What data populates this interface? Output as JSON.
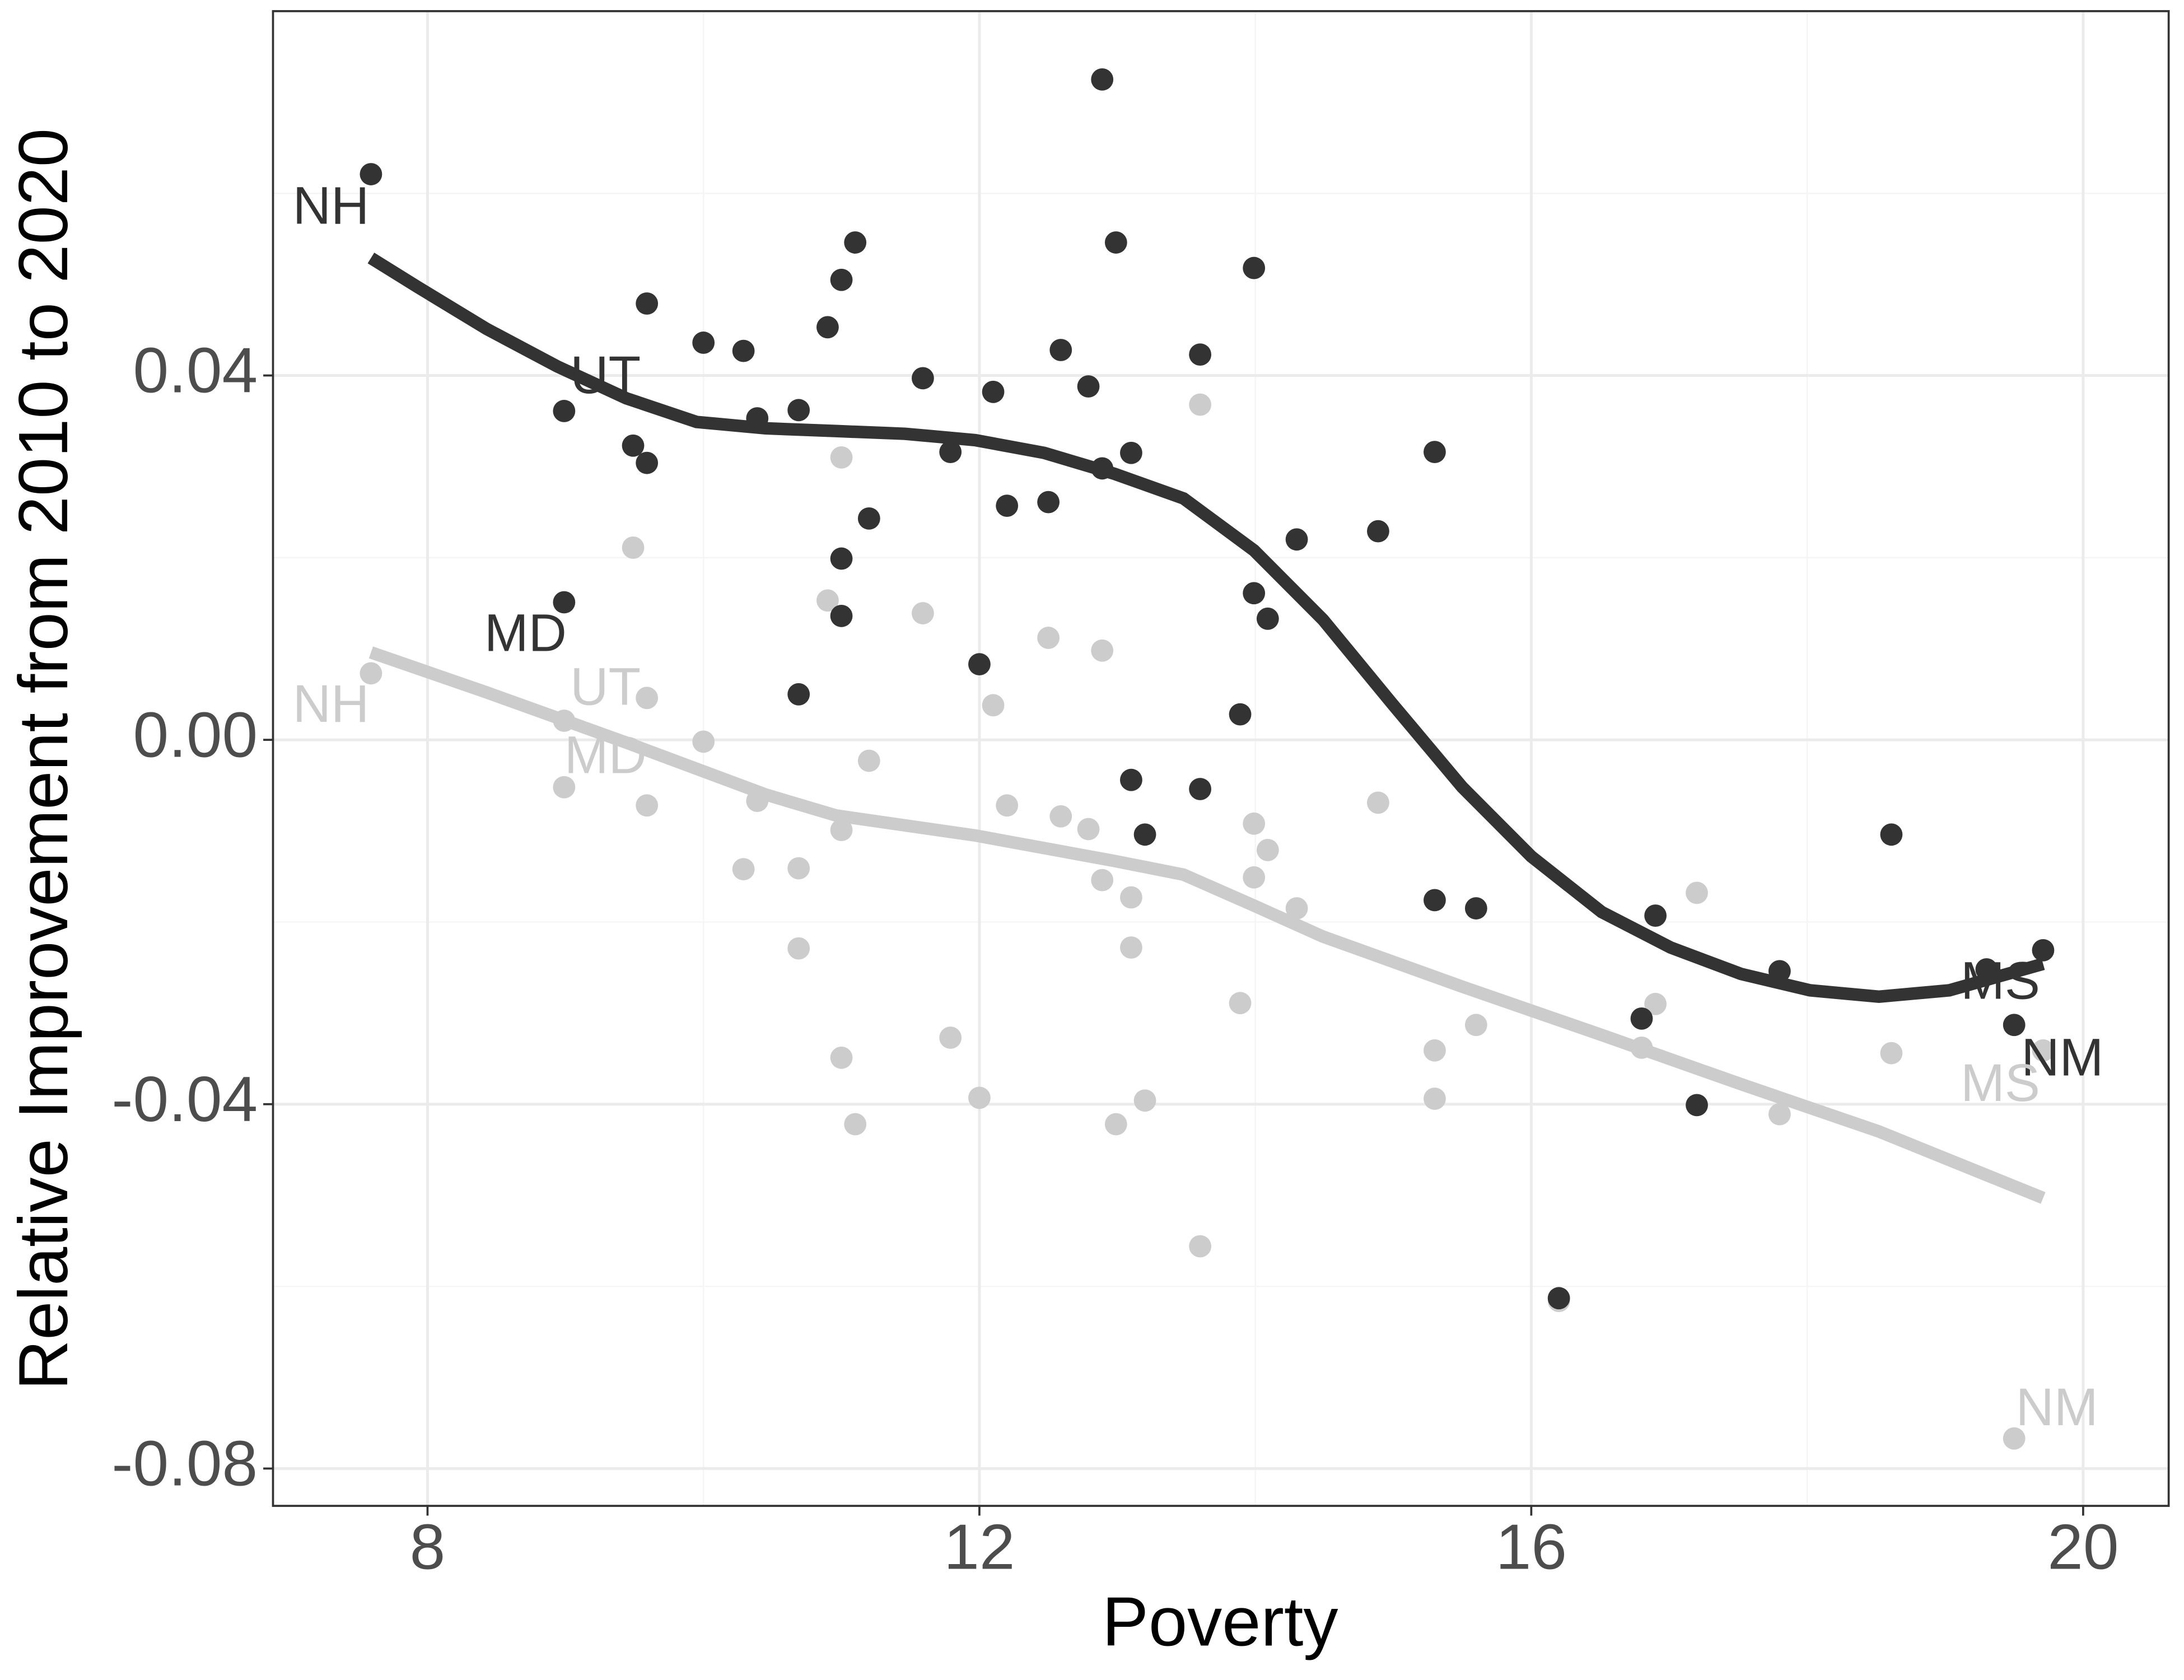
{
  "chart_data": {
    "type": "scatter",
    "xlabel": "Poverty",
    "ylabel": "Relative Improvement from 2010 to 2020",
    "xlim": [
      6.88,
      20.62
    ],
    "ylim": [
      -0.0841,
      0.08
    ],
    "xticks": [
      8,
      12,
      16,
      20
    ],
    "yticks": [
      0.04,
      {
        "value": 0,
        "label": "0.00"
      },
      -0.04,
      -0.08
    ],
    "x_minor_ticks": [
      10,
      14,
      18
    ],
    "y_minor_ticks": [
      0.06,
      0.02,
      -0.02,
      -0.06
    ],
    "grid": true,
    "series": [
      {
        "color": "#333333",
        "x": [
          7.59,
          8.99,
          8.99,
          9.49,
          9.59,
          9.59,
          10.0,
          10.29,
          10.39,
          10.69,
          10.69,
          10.9,
          11.0,
          11.1,
          11.0,
          11.0,
          11.2,
          11.59,
          11.79,
          12.0,
          12.1,
          12.2,
          12.5,
          12.59,
          12.79,
          12.89,
          12.89,
          12.99,
          13.1,
          13.1,
          13.2,
          13.6,
          13.6,
          13.89,
          13.99,
          13.99,
          14.09,
          14.3,
          14.89,
          15.3,
          15.3,
          15.6,
          16.2,
          16.8,
          16.9,
          17.2,
          17.8,
          18.61,
          19.3,
          19.5,
          19.71
        ],
        "values": [
          0.0621,
          0.0361,
          0.0151,
          0.0323,
          0.0479,
          0.0304,
          0.0436,
          0.0427,
          0.0353,
          0.0362,
          0.005,
          0.0453,
          0.0505,
          0.0546,
          0.0199,
          0.0136,
          0.0243,
          0.0397,
          0.0316,
          0.0083,
          0.0382,
          0.0257,
          0.0261,
          0.0428,
          0.0388,
          0.0725,
          0.0298,
          0.0546,
          0.0315,
          -0.0044,
          -0.0104,
          0.0423,
          -0.0054,
          0.0028,
          0.0518,
          0.0161,
          0.0133,
          0.022,
          0.0229,
          0.0316,
          -0.0176,
          -0.0185,
          -0.0613,
          -0.0306,
          -0.0193,
          -0.0401,
          -0.0254,
          -0.0104,
          -0.0252,
          -0.0313,
          -0.0231
        ],
        "smooth": {
          "x": [
            7.59,
            7.93,
            8.43,
            8.94,
            9.44,
            9.95,
            10.45,
            10.96,
            11.46,
            11.97,
            12.47,
            12.98,
            13.48,
            13.99,
            14.49,
            14.99,
            15.5,
            16.0,
            16.51,
            17.01,
            17.52,
            18.02,
            18.52,
            19.03,
            19.71
          ],
          "values": [
            0.0529,
            0.0497,
            0.0451,
            0.041,
            0.0375,
            0.0349,
            0.0342,
            0.0339,
            0.0336,
            0.0329,
            0.0315,
            0.0292,
            0.0265,
            0.0208,
            0.0132,
            0.004,
            -0.0052,
            -0.0128,
            -0.0189,
            -0.0228,
            -0.0257,
            -0.0275,
            -0.0282,
            -0.0275,
            -0.0246
          ]
        },
        "labels": [
          {
            "text": "NH",
            "x": 7.3,
            "y": 0.0582
          },
          {
            "text": "UT",
            "x": 9.29,
            "y": 0.0396
          },
          {
            "text": "MD",
            "x": 8.71,
            "y": 0.0113
          },
          {
            "text": "MS",
            "x": 19.4,
            "y": -0.0269
          },
          {
            "text": "NM",
            "x": 19.85,
            "y": -0.0353
          }
        ]
      },
      {
        "color": "#cccccc",
        "x": [
          7.59,
          8.99,
          8.99,
          9.49,
          9.59,
          9.59,
          10.0,
          10.29,
          10.39,
          10.69,
          10.69,
          10.9,
          11.0,
          11.1,
          11.0,
          11.0,
          11.2,
          11.59,
          11.79,
          12.0,
          12.1,
          12.2,
          12.5,
          12.59,
          12.79,
          12.89,
          12.89,
          12.99,
          13.1,
          13.1,
          13.2,
          13.6,
          13.6,
          13.89,
          13.99,
          13.99,
          14.09,
          14.3,
          14.89,
          15.3,
          15.3,
          15.6,
          16.2,
          16.8,
          16.9,
          17.2,
          17.8,
          18.61,
          19.3,
          19.5,
          19.71
        ],
        "values": [
          0.0073,
          0.0021,
          -0.0052,
          0.0211,
          0.0046,
          -0.0072,
          -0.0002,
          -0.0142,
          -0.0067,
          -0.0141,
          -0.0229,
          0.0153,
          0.031,
          -0.0422,
          -0.0099,
          -0.0349,
          -0.0023,
          0.0139,
          -0.0327,
          -0.0393,
          0.0038,
          -0.0072,
          0.0112,
          -0.0084,
          -0.0098,
          0.0098,
          -0.0154,
          -0.0422,
          -0.0173,
          -0.0228,
          -0.0396,
          0.0368,
          -0.0556,
          -0.0289,
          -0.0092,
          -0.0151,
          -0.0121,
          -0.0185,
          -0.0069,
          -0.0341,
          -0.0394,
          -0.0313,
          -0.0616,
          -0.0338,
          -0.029,
          -0.0168,
          -0.0411,
          -0.0344,
          -0.0252,
          -0.0767,
          -0.0341
        ],
        "smooth": {
          "x": [
            7.59,
            8.43,
            9.44,
            10.45,
            10.96,
            11.97,
            12.98,
            13.48,
            13.99,
            14.49,
            15.5,
            16.51,
            17.52,
            18.52,
            19.71
          ],
          "values": [
            0.0096,
            0.0052,
            -0.0003,
            -0.006,
            -0.0083,
            -0.0105,
            -0.0133,
            -0.0148,
            -0.0182,
            -0.0216,
            -0.0271,
            -0.0324,
            -0.0378,
            -0.043,
            -0.0503
          ]
        },
        "labels": [
          {
            "text": "NH",
            "x": 7.3,
            "y": 0.0035
          },
          {
            "text": "UT",
            "x": 9.29,
            "y": 0.0054
          },
          {
            "text": "MD",
            "x": 9.29,
            "y": -0.0021
          },
          {
            "text": "MS",
            "x": 19.4,
            "y": -0.0381
          },
          {
            "text": "NM",
            "x": 19.81,
            "y": -0.0737
          }
        ]
      }
    ]
  }
}
